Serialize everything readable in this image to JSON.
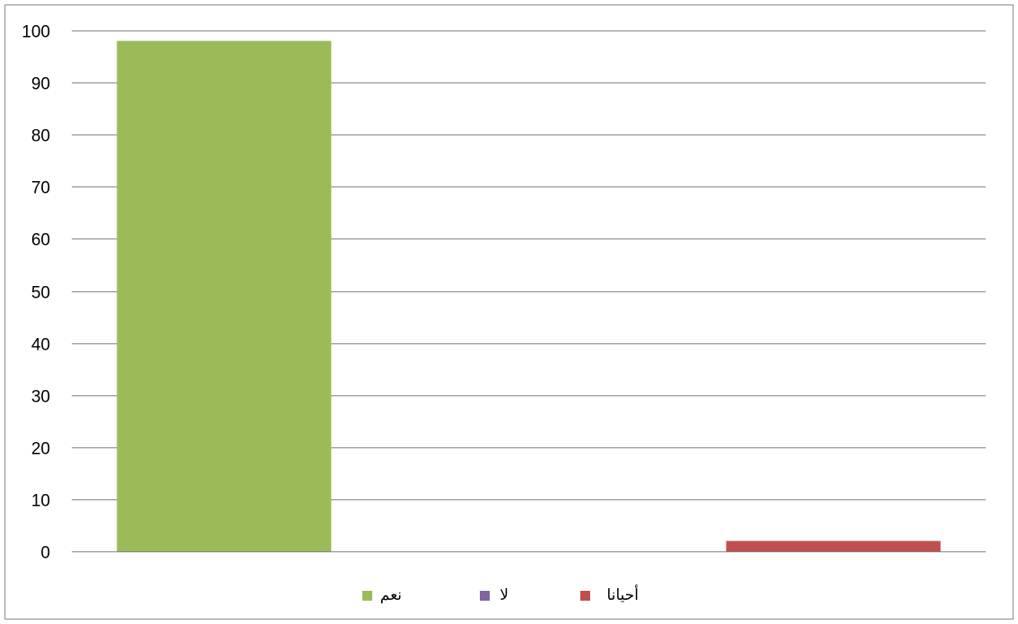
{
  "chart_data": {
    "type": "bar",
    "title": "",
    "xlabel": "",
    "ylabel": "",
    "ylim": [
      0,
      100
    ],
    "yticks": [
      0,
      10,
      20,
      30,
      40,
      50,
      60,
      70,
      80,
      90,
      100
    ],
    "grid": true,
    "legend_position": "bottom",
    "series": [
      {
        "name": "نعم",
        "value": 98,
        "color": "#9bbb59"
      },
      {
        "name": "لا",
        "value": 0,
        "color": "#8064a2"
      },
      {
        "name": "أحيانا",
        "value": 2,
        "color": "#c0504d"
      }
    ]
  }
}
